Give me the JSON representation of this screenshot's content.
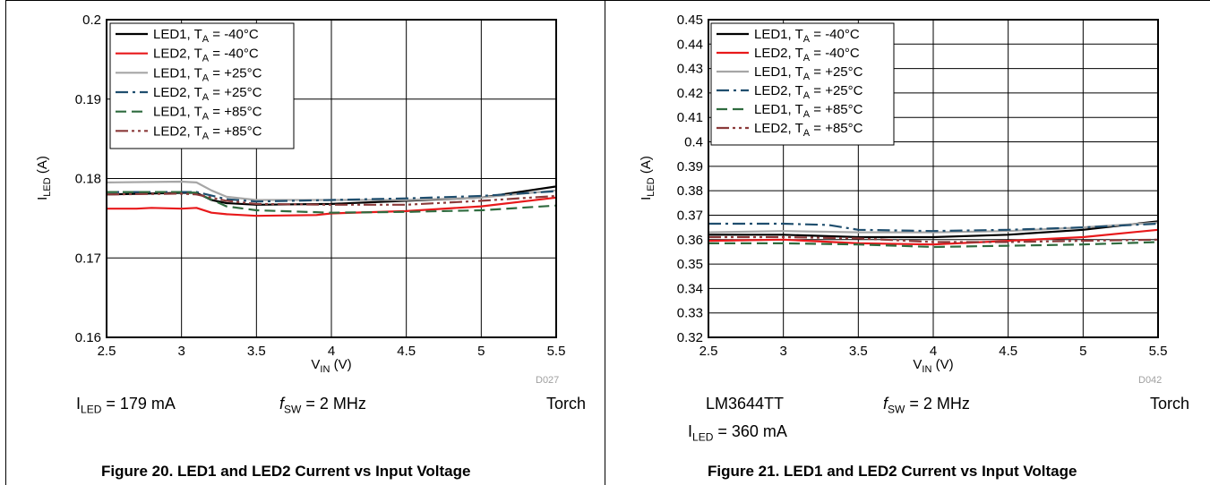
{
  "charts": [
    {
      "id": "left",
      "code": "D027",
      "conditions": {
        "iled_sym": "I",
        "iled_sub": "LED",
        "iled_value": " = 179 mA",
        "fsw_sym": "f",
        "fsw_sub": "SW",
        "fsw_value": " = 2 MHz",
        "mode": "Torch"
      },
      "caption": "Figure 20. LED1 and LED2 Current vs Input Voltage"
    },
    {
      "id": "right",
      "code": "D042",
      "conditions": {
        "device": "LM3644TT",
        "iled_sym": "I",
        "iled_sub": "LED",
        "iled_value": " = 360 mA",
        "fsw_sym": "f",
        "fsw_sub": "SW",
        "fsw_value": " = 2 MHz",
        "mode": "Torch"
      },
      "caption": "Figure 21. LED1 and LED2 Current vs Input Voltage"
    }
  ],
  "chart_data": [
    {
      "type": "line",
      "xlabel": "VIN (V)",
      "xlabel_main": "V",
      "xlabel_sub": "IN",
      "xlabel_unit": " (V)",
      "ylabel": "ILED (A)",
      "ylabel_main": "I",
      "ylabel_sub": "LED",
      "ylabel_unit": " (A)",
      "xlim": [
        2.5,
        5.5
      ],
      "ylim": [
        0.16,
        0.2
      ],
      "xticks": [
        "2.5",
        "3",
        "3.5",
        "4",
        "4.5",
        "5",
        "5.5"
      ],
      "yticks": [
        "0.16",
        "0.17",
        "0.18",
        "0.19",
        "0.2"
      ],
      "grid": true,
      "legend_position": "top-left",
      "series": [
        {
          "name": "LED1, TA = -40°C",
          "name_a": "LED1, T",
          "name_sub": "A",
          "name_b": " = -40°C",
          "color": "#000000",
          "dash": "solid",
          "x": [
            2.5,
            3.0,
            3.1,
            3.2,
            3.3,
            3.5,
            4.0,
            4.5,
            5.0,
            5.5
          ],
          "y": [
            0.178,
            0.1782,
            0.1782,
            0.1773,
            0.1769,
            0.1767,
            0.1768,
            0.1772,
            0.1776,
            0.179
          ]
        },
        {
          "name": "LED2, TA = -40°C",
          "name_a": "LED2, T",
          "name_sub": "A",
          "name_b": " = -40°C",
          "color": "#e8191b",
          "dash": "solid",
          "x": [
            2.5,
            2.7,
            2.8,
            3.0,
            3.1,
            3.2,
            3.3,
            3.5,
            3.9,
            4.0,
            4.5,
            5.0,
            5.5
          ],
          "y": [
            0.1762,
            0.1762,
            0.1763,
            0.1762,
            0.1763,
            0.1757,
            0.1755,
            0.1753,
            0.1754,
            0.1756,
            0.1759,
            0.1765,
            0.1776
          ]
        },
        {
          "name": "LED1, TA = +25°C",
          "name_a": "LED1, T",
          "name_sub": "A",
          "name_b": " = +25°C",
          "color": "#a6a6a6",
          "dash": "solid",
          "x": [
            2.5,
            3.0,
            3.1,
            3.2,
            3.3,
            3.5,
            4.0,
            4.5,
            5.0,
            5.5
          ],
          "y": [
            0.1795,
            0.1796,
            0.1795,
            0.1785,
            0.1777,
            0.1773,
            0.1773,
            0.1773,
            0.1776,
            0.1785
          ]
        },
        {
          "name": "LED2, TA = +25°C",
          "name_a": "LED2, T",
          "name_sub": "A",
          "name_b": " = +25°C",
          "color": "#1f4e6e",
          "dash": "dashdot",
          "x": [
            2.5,
            3.0,
            3.1,
            3.3,
            3.5,
            4.0,
            4.5,
            5.0,
            5.5
          ],
          "y": [
            0.1783,
            0.1783,
            0.1783,
            0.1774,
            0.1771,
            0.1773,
            0.1775,
            0.1778,
            0.1784
          ]
        },
        {
          "name": "LED1, TA = +85°C",
          "name_a": "LED1, T",
          "name_sub": "A",
          "name_b": " = +85°C",
          "color": "#2f6b3f",
          "dash": "dash",
          "x": [
            2.5,
            3.0,
            3.1,
            3.3,
            3.5,
            4.0,
            4.5,
            5.0,
            5.5
          ],
          "y": [
            0.1783,
            0.1783,
            0.1782,
            0.1765,
            0.176,
            0.1757,
            0.1758,
            0.176,
            0.1766
          ]
        },
        {
          "name": "LED2, TA = +85°C",
          "name_a": "LED2, T",
          "name_sub": "A",
          "name_b": " = +85°C",
          "color": "#8b3a3a",
          "dash": "dashdotdot",
          "x": [
            2.5,
            3.0,
            3.1,
            3.3,
            3.5,
            4.0,
            4.5,
            5.0,
            5.5
          ],
          "y": [
            0.178,
            0.1781,
            0.178,
            0.1772,
            0.1768,
            0.1767,
            0.1767,
            0.1772,
            0.1778
          ]
        }
      ]
    },
    {
      "type": "line",
      "xlabel": "VIN (V)",
      "xlabel_main": "V",
      "xlabel_sub": "IN",
      "xlabel_unit": " (V)",
      "ylabel": "ILED (A)",
      "ylabel_main": "I",
      "ylabel_sub": "LED",
      "ylabel_unit": " (A)",
      "xlim": [
        2.5,
        5.5
      ],
      "ylim": [
        0.32,
        0.45
      ],
      "xticks": [
        "2.5",
        "3",
        "3.5",
        "4",
        "4.5",
        "5",
        "5.5"
      ],
      "yticks": [
        "0.32",
        "0.33",
        "0.34",
        "0.35",
        "0.36",
        "0.37",
        "0.38",
        "0.39",
        "0.4",
        "0.41",
        "0.42",
        "0.43",
        "0.44",
        "0.45"
      ],
      "grid": true,
      "legend_position": "top-left",
      "series": [
        {
          "name": "LED1, TA = -40°C",
          "name_a": "LED1, T",
          "name_sub": "A",
          "name_b": " = -40°C",
          "color": "#000000",
          "dash": "solid",
          "x": [
            2.5,
            3.0,
            3.5,
            4.0,
            4.5,
            5.0,
            5.5
          ],
          "y": [
            0.362,
            0.362,
            0.361,
            0.361,
            0.362,
            0.364,
            0.3675
          ]
        },
        {
          "name": "LED2, TA = -40°C",
          "name_a": "LED2, T",
          "name_sub": "A",
          "name_b": " = -40°C",
          "color": "#e8191b",
          "dash": "solid",
          "x": [
            2.5,
            3.0,
            3.5,
            4.0,
            4.5,
            5.0,
            5.5
          ],
          "y": [
            0.3595,
            0.36,
            0.3585,
            0.358,
            0.3595,
            0.361,
            0.364
          ]
        },
        {
          "name": "LED1, TA = +25°C",
          "name_a": "LED1, T",
          "name_sub": "A",
          "name_b": " = +25°C",
          "color": "#a6a6a6",
          "dash": "solid",
          "x": [
            2.5,
            3.0,
            3.5,
            4.0,
            4.5,
            5.0,
            5.5
          ],
          "y": [
            0.363,
            0.3635,
            0.363,
            0.363,
            0.3635,
            0.365,
            0.367
          ]
        },
        {
          "name": "LED2, TA = +25°C",
          "name_a": "LED2, T",
          "name_sub": "A",
          "name_b": " = +25°C",
          "color": "#1f4e6e",
          "dash": "dashdot",
          "x": [
            2.5,
            3.0,
            3.3,
            3.5,
            4.0,
            4.5,
            5.0,
            5.5
          ],
          "y": [
            0.3665,
            0.3665,
            0.366,
            0.364,
            0.3635,
            0.364,
            0.365,
            0.3665
          ]
        },
        {
          "name": "LED1, TA = +85°C",
          "name_a": "LED1, T",
          "name_sub": "A",
          "name_b": " = +85°C",
          "color": "#2f6b3f",
          "dash": "dash",
          "x": [
            2.5,
            3.0,
            3.5,
            4.0,
            4.5,
            5.0,
            5.5
          ],
          "y": [
            0.3585,
            0.3585,
            0.358,
            0.357,
            0.3575,
            0.358,
            0.359
          ]
        },
        {
          "name": "LED2, TA = +85°C",
          "name_a": "LED2, T",
          "name_sub": "A",
          "name_b": " = +85°C",
          "color": "#8b3a3a",
          "dash": "dashdotdot",
          "x": [
            2.5,
            3.0,
            3.5,
            4.0,
            4.5,
            5.0,
            5.5
          ],
          "y": [
            0.361,
            0.361,
            0.3605,
            0.359,
            0.359,
            0.3595,
            0.36
          ]
        }
      ]
    }
  ]
}
